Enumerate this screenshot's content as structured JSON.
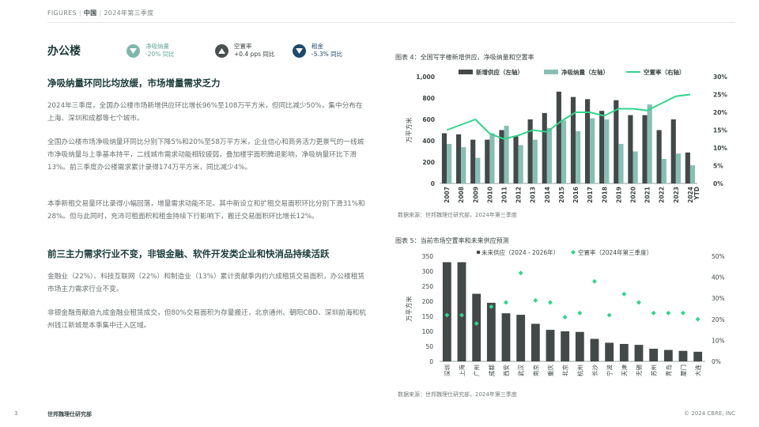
{
  "header": {
    "figures": "FIGURES",
    "country": "中国",
    "period": "2024年第三季度"
  },
  "section_title": "办公楼",
  "kpis": [
    {
      "label": "净吸纳量",
      "value": "-20% 同比",
      "icon": "triangle-down-icon",
      "color": "#7fb7ad"
    },
    {
      "label": "空置率",
      "value": "+0.4 pps 同比",
      "icon": "triangle-up-icon",
      "color": "#4a4f4f"
    },
    {
      "label": "租金",
      "value": "-5.3% 同比",
      "icon": "triangle-down-icon",
      "color": "#1f4a6b"
    }
  ],
  "article": {
    "heading1": "净吸纳量环同比均放缓，市场增量需求乏力",
    "p1": "2024年三季度，全国办公楼市场新增供应环比增长96%至108万平方米，但同比减少50%，集中分布在上海、深圳和成都等七个城市。",
    "p2": "全国办公楼市场净吸纳量环同比分别下降5%和20%至58万平方米，企业信心和商务活力更景气的一线城市净吸纳量与上季基本持平，二线城市需求动能相较疲弱，叠加楼宇面积腾退影响，净吸纳量环比下滑13%。前三季度办公楼需求累计录得174万平方米，同比减少4%。",
    "p3": "本季新租交易量环比录得小幅回落，增量需求动能不足。其中新设立和扩租交易面积环比分别下滑31%和28%。但与此同时，充沛可租面积和租金持续下行影响下，搬迁交易面积环比增长12%。",
    "heading2": "前三主力需求行业不变，非银金融、软件开发类企业和快消品持续活跃",
    "p4": "金融业（22%）、科技互联网（22%）和制造业（13%）累计贡献季内约六成租赁交易面积，办公楼租赁市场主力需求行业不变。",
    "p5": "非银金融贡献逾九成金融业租赁成交，但80%交易面积为存量搬迁，北京通州、朝阳CBD、深圳前海和杭州钱江新城是本季集中迁入区域。"
  },
  "footer": {
    "page": "3",
    "org": "世邦魏理仕研究部",
    "copyright": "© 2024 CBRE, INC"
  },
  "colors": {
    "dark_bar": "#434848",
    "light_bar": "#86bfb3",
    "line": "#2fd58d",
    "diamond": "#2fd58d"
  },
  "chart_data": [
    {
      "type": "bar",
      "title": "图表 4：全国写字楼新增供应、净吸纳量和空置率",
      "ylabel": "万平方米",
      "ylim": [
        0,
        1000
      ],
      "y2lim": [
        0,
        30
      ],
      "yticks": [
        "0",
        "200",
        "400",
        "600",
        "800",
        "1,000"
      ],
      "y2ticks": [
        "0%",
        "5%",
        "10%",
        "15%",
        "20%",
        "25%",
        "30%"
      ],
      "categories": [
        "2007",
        "2008",
        "2009",
        "2010",
        "2011",
        "2012",
        "2013",
        "2014",
        "2015",
        "2016",
        "2017",
        "2018",
        "2019",
        "2020",
        "2021",
        "2022",
        "2023",
        "2024 YTD"
      ],
      "series": [
        {
          "name": "新增供应（左轴）",
          "type": "bar",
          "values": [
            470,
            460,
            410,
            410,
            500,
            440,
            600,
            660,
            860,
            810,
            790,
            680,
            780,
            640,
            640,
            500,
            600,
            290
          ]
        },
        {
          "name": "净吸纳量（左轴）",
          "type": "bar",
          "values": [
            370,
            340,
            240,
            470,
            540,
            360,
            410,
            520,
            590,
            490,
            610,
            600,
            370,
            300,
            740,
            230,
            280,
            170
          ]
        },
        {
          "name": "空置率（右轴）",
          "type": "line",
          "axis": "right",
          "values": [
            15.0,
            16.5,
            18.0,
            14.0,
            12.5,
            13.5,
            15.0,
            14.5,
            17.5,
            20.0,
            20.0,
            19.0,
            21.0,
            21.0,
            20.5,
            22.5,
            24.5,
            25.0
          ]
        }
      ],
      "legend": "top",
      "source": "数据来源：世邦魏理仕研究部，2024年第三季度"
    },
    {
      "type": "bar",
      "title": "图表 5：当前市场空置率和未来供应预测",
      "ylabel": "万平方米",
      "ylim": [
        0,
        350
      ],
      "y2lim": [
        0,
        50
      ],
      "yticks": [
        "0",
        "50",
        "100",
        "150",
        "200",
        "250",
        "300",
        "350"
      ],
      "y2ticks": [
        "0%",
        "10%",
        "20%",
        "30%",
        "40%",
        "50%"
      ],
      "categories": [
        "深圳",
        "上海",
        "广州",
        "成都",
        "西安",
        "武汉",
        "南京",
        "重庆",
        "北京",
        "杭州",
        "长沙",
        "宁波",
        "天津",
        "无锡",
        "苏州",
        "青岛",
        "厦门",
        "大连"
      ],
      "series": [
        {
          "name": "未来供应（2024 - 2026年）",
          "type": "bar",
          "values": [
            330,
            330,
            225,
            195,
            160,
            155,
            125,
            105,
            100,
            98,
            75,
            62,
            58,
            55,
            42,
            38,
            35,
            32
          ]
        },
        {
          "name": "空置率（2024年第三季度）",
          "type": "scatter",
          "axis": "right",
          "values": [
            22,
            22,
            18,
            26,
            28,
            42,
            29,
            28,
            21,
            23,
            38,
            22,
            32,
            28,
            23,
            23,
            23,
            20
          ]
        }
      ],
      "legend": "top",
      "source": "数据来源：世邦魏理仕研究部，2024年第三季度"
    }
  ]
}
